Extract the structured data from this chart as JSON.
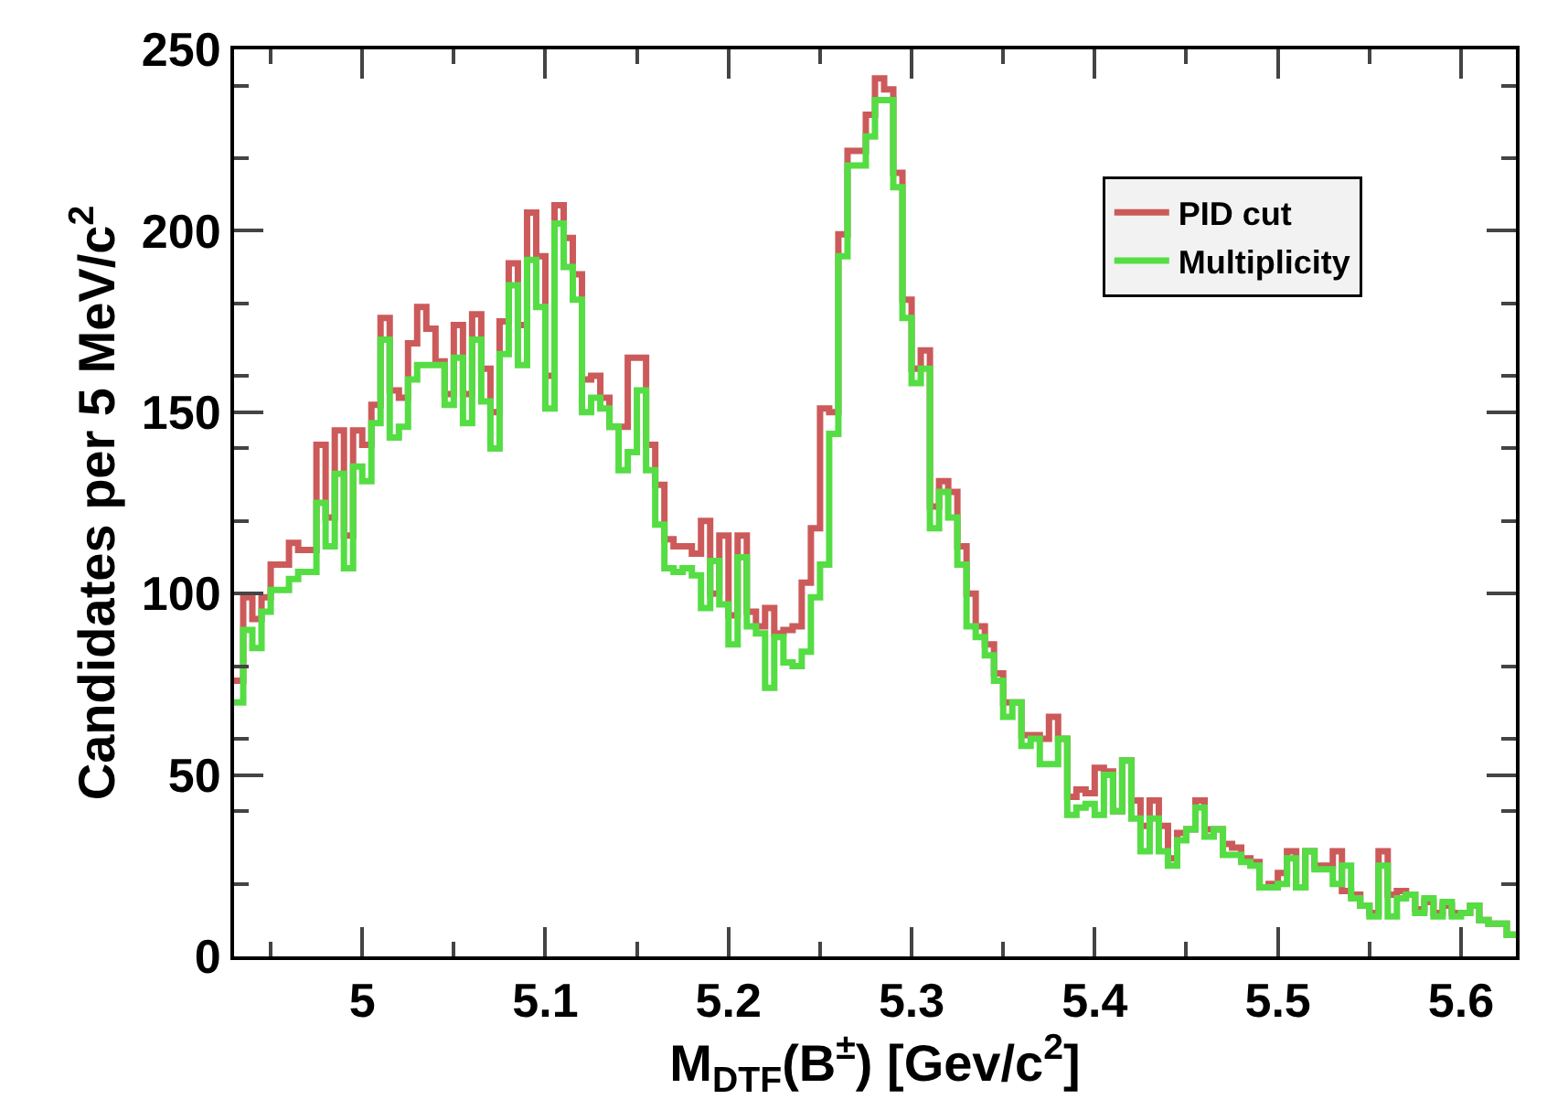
{
  "chart_data": {
    "type": "histogram",
    "xlabel": "M$_{DTF}$(B$^{±}$) [Gev/c$^{2}$]",
    "ylabel": "Candidates per 5 MeV/c$^{2}$",
    "bins": [
      4.93,
      4.935,
      4.94,
      4.945,
      4.95,
      4.955,
      4.96,
      4.965,
      4.97,
      4.975,
      4.98,
      4.985,
      4.99,
      4.995,
      5.0,
      5.005,
      5.01,
      5.015,
      5.02,
      5.025,
      5.03,
      5.035,
      5.04,
      5.045,
      5.05,
      5.055,
      5.06,
      5.065,
      5.07,
      5.075,
      5.08,
      5.085,
      5.09,
      5.095,
      5.1,
      5.105,
      5.11,
      5.115,
      5.12,
      5.125,
      5.13,
      5.135,
      5.14,
      5.145,
      5.15,
      5.155,
      5.16,
      5.165,
      5.17,
      5.175,
      5.18,
      5.185,
      5.19,
      5.195,
      5.2,
      5.205,
      5.21,
      5.215,
      5.22,
      5.225,
      5.23,
      5.235,
      5.24,
      5.245,
      5.25,
      5.255,
      5.26,
      5.265,
      5.27,
      5.275,
      5.28,
      5.285,
      5.29,
      5.295,
      5.3,
      5.305,
      5.31,
      5.315,
      5.32,
      5.325,
      5.33,
      5.335,
      5.34,
      5.345,
      5.35,
      5.355,
      5.36,
      5.365,
      5.37,
      5.375,
      5.38,
      5.385,
      5.39,
      5.395,
      5.4,
      5.405,
      5.41,
      5.415,
      5.42,
      5.425,
      5.43,
      5.435,
      5.44,
      5.445,
      5.45,
      5.455,
      5.46,
      5.465,
      5.47,
      5.475,
      5.48,
      5.485,
      5.49,
      5.495,
      5.5,
      5.505,
      5.51,
      5.515,
      5.52,
      5.525,
      5.53,
      5.535,
      5.54,
      5.545,
      5.55,
      5.555,
      5.56,
      5.565,
      5.57,
      5.575,
      5.58,
      5.585,
      5.59,
      5.595,
      5.6,
      5.605,
      5.61,
      5.615,
      5.62,
      5.625,
      5.63
    ],
    "series": [
      {
        "name": "PID cut",
        "color": "#cc5a5a",
        "values": [
          76,
          99,
          93,
          99,
          108,
          108,
          114,
          112,
          112,
          141,
          121,
          145,
          116,
          145,
          141,
          152,
          176,
          156,
          154,
          169,
          179,
          173,
          164,
          155,
          174,
          155,
          177,
          162,
          150,
          175,
          191,
          174,
          205,
          193,
          160,
          207,
          198,
          188,
          159,
          160,
          154,
          146,
          146,
          165,
          165,
          141,
          130,
          115,
          113,
          113,
          111,
          120,
          100,
          116,
          94,
          116,
          95,
          91,
          96,
          89,
          90,
          91,
          103,
          118,
          151,
          150,
          199,
          222,
          222,
          232,
          242,
          239,
          216,
          181,
          162,
          167,
          124,
          131,
          128,
          113,
          100,
          91,
          86,
          78,
          70,
          70,
          61,
          61,
          60,
          66,
          60,
          44,
          46,
          45,
          52,
          51,
          40,
          54,
          43,
          36,
          43,
          36,
          27,
          34,
          35,
          43,
          35,
          35,
          31,
          30,
          27,
          26,
          19,
          20,
          23,
          29,
          19,
          29,
          25,
          25,
          29,
          18,
          17,
          14,
          12,
          29,
          17,
          18,
          17,
          13,
          15,
          12,
          14,
          12,
          12,
          14,
          10,
          9,
          9,
          6
        ]
      },
      {
        "name": "Multiplicity",
        "color": "#55dd44",
        "values": [
          70,
          90,
          85,
          95,
          101,
          101,
          104,
          106,
          106,
          125,
          113,
          133,
          107,
          135,
          131,
          147,
          170,
          143,
          146,
          159,
          163,
          163,
          163,
          152,
          165,
          147,
          170,
          153,
          140,
          166,
          185,
          163,
          192,
          179,
          151,
          202,
          190,
          181,
          150,
          154,
          151,
          146,
          134,
          139,
          156,
          134,
          119,
          107,
          106,
          107,
          105,
          96,
          109,
          97,
          86,
          110,
          91,
          89,
          74,
          88,
          81,
          80,
          84,
          99,
          108,
          144,
          193,
          218,
          218,
          226,
          236,
          236,
          212,
          176,
          158,
          162,
          118,
          128,
          121,
          108,
          91,
          88,
          83,
          76,
          66,
          70,
          58,
          60,
          53,
          53,
          60,
          39,
          41,
          42,
          39,
          50,
          40,
          54,
          38,
          29,
          38,
          29,
          25,
          32,
          35,
          41,
          33,
          35,
          28,
          28,
          26,
          25,
          19,
          19,
          20,
          27,
          19,
          29,
          24,
          24,
          20,
          25,
          16,
          14,
          11,
          25,
          11,
          16,
          17,
          12,
          16,
          11,
          15,
          11,
          12,
          14,
          10,
          9,
          9,
          6
        ]
      }
    ],
    "xlim": [
      4.93,
      5.63
    ],
    "xticks": [
      5,
      5.1,
      5.2,
      5.3,
      5.4,
      5.5,
      5.6
    ],
    "ylim": [
      0,
      250
    ],
    "yticks": [
      0,
      50,
      100,
      150,
      200,
      250
    ],
    "grid": false,
    "legend": "top right"
  }
}
